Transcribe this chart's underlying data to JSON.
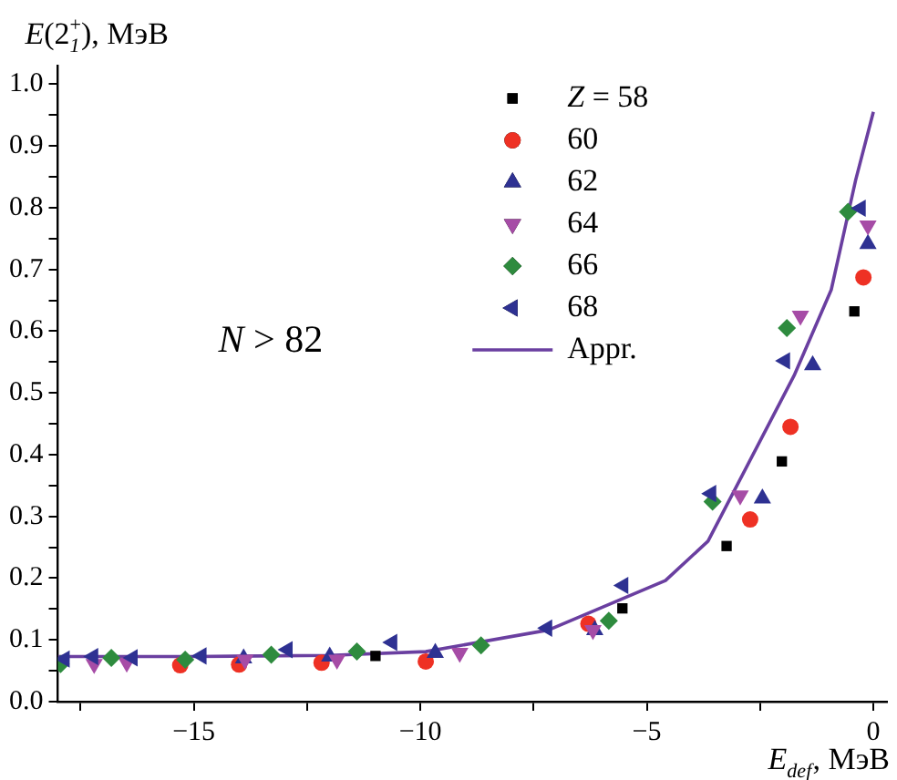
{
  "chart_data": {
    "type": "scatter",
    "xlabel": "E$_{def}$, МэВ",
    "ylabel": "E(2$_{1}$$^{+}$), МэВ",
    "annotations": [
      "N > 82"
    ],
    "xlim": [
      -18,
      0.3
    ],
    "ylim": [
      0,
      1.03
    ],
    "xticks": [
      {
        "value": -17.5,
        "label": null
      },
      {
        "value": -15,
        "label": "−15"
      },
      {
        "value": -12.5,
        "label": null
      },
      {
        "value": -10,
        "label": "−10"
      },
      {
        "value": -7.5,
        "label": null
      },
      {
        "value": -5,
        "label": "−5"
      },
      {
        "value": -2.5,
        "label": null
      },
      0
    ],
    "yticks": [
      {
        "value": 0,
        "label": "0.0"
      },
      {
        "value": 0.05,
        "label": null
      },
      0.1,
      {
        "value": 0.15,
        "label": null
      },
      0.2,
      {
        "value": 0.25,
        "label": null
      },
      0.3,
      {
        "value": 0.35,
        "label": null
      },
      0.4,
      {
        "value": 0.45,
        "label": null
      },
      0.5,
      {
        "value": 0.55,
        "label": null
      },
      0.6,
      {
        "value": 0.65,
        "label": null
      },
      0.7,
      {
        "value": 0.75,
        "label": null
      },
      0.8,
      {
        "value": 0.85,
        "label": null
      },
      0.9,
      {
        "value": 0.95,
        "label": null
      },
      {
        "value": 1.0,
        "label": "1.0"
      }
    ],
    "grid": false,
    "legend": "top right",
    "series": [
      {
        "name": "Z = 58",
        "color": "#000000",
        "marker": "square",
        "x": [
          -0.42,
          -2.02,
          -3.24,
          -5.54,
          -10.99
        ],
        "values": [
          0.632,
          0.389,
          0.252,
          0.151,
          0.074
        ]
      },
      {
        "name": "60",
        "color": "#ee3124",
        "marker": "circle",
        "x": [
          -0.22,
          -1.83,
          -2.72,
          -6.29,
          -9.88,
          -12.18,
          -14.0,
          -15.3
        ],
        "values": [
          0.687,
          0.445,
          0.295,
          0.126,
          0.065,
          0.063,
          0.06,
          0.059
        ]
      },
      {
        "name": "62",
        "color": "#2e3192",
        "marker": "triangle",
        "x": [
          -0.12,
          -1.34,
          -2.45,
          -6.15,
          -9.67,
          -12.0,
          -13.9
        ],
        "values": [
          0.741,
          0.545,
          0.329,
          0.116,
          0.079,
          0.073,
          0.07
        ]
      },
      {
        "name": "64",
        "color": "#a64ca6",
        "marker": "triangle-down",
        "x": [
          -0.12,
          -1.61,
          -2.94,
          -6.19,
          -9.13,
          -11.84,
          -13.87,
          -16.48,
          -17.2
        ],
        "values": [
          0.771,
          0.625,
          0.334,
          0.116,
          0.079,
          0.068,
          0.068,
          0.063,
          0.061
        ]
      },
      {
        "name": "66",
        "color": "#2e8b3e",
        "marker": "diamond",
        "x": [
          -0.56,
          -1.91,
          -3.55,
          -5.84,
          -8.66,
          -11.4,
          -13.29,
          -15.19,
          -16.82,
          -17.94
        ],
        "values": [
          0.793,
          0.605,
          0.324,
          0.131,
          0.091,
          0.081,
          0.076,
          0.068,
          0.071,
          0.061
        ]
      },
      {
        "name": "68",
        "color": "#2e3192",
        "marker": "triangle-left",
        "x": [
          -0.28,
          -1.95,
          -3.58,
          -5.52,
          -7.2,
          -10.62,
          -12.93,
          -14.83,
          -16.35,
          -17.22,
          -17.85
        ],
        "values": [
          0.799,
          0.552,
          0.337,
          0.188,
          0.119,
          0.096,
          0.084,
          0.074,
          0.071,
          0.073,
          0.069
        ]
      },
      {
        "name": "Appr.",
        "type": "line",
        "color": "#6a3fa0",
        "marker": "none",
        "line_style": "solid",
        "x": [
          -18,
          -15,
          -12,
          -9.88,
          -7.17,
          -4.59,
          -3.65,
          -1.75,
          -0.93,
          -0.39,
          0
        ],
        "values": [
          0.073,
          0.073,
          0.075,
          0.081,
          0.116,
          0.196,
          0.26,
          0.528,
          0.667,
          0.845,
          0.955
        ]
      }
    ]
  }
}
